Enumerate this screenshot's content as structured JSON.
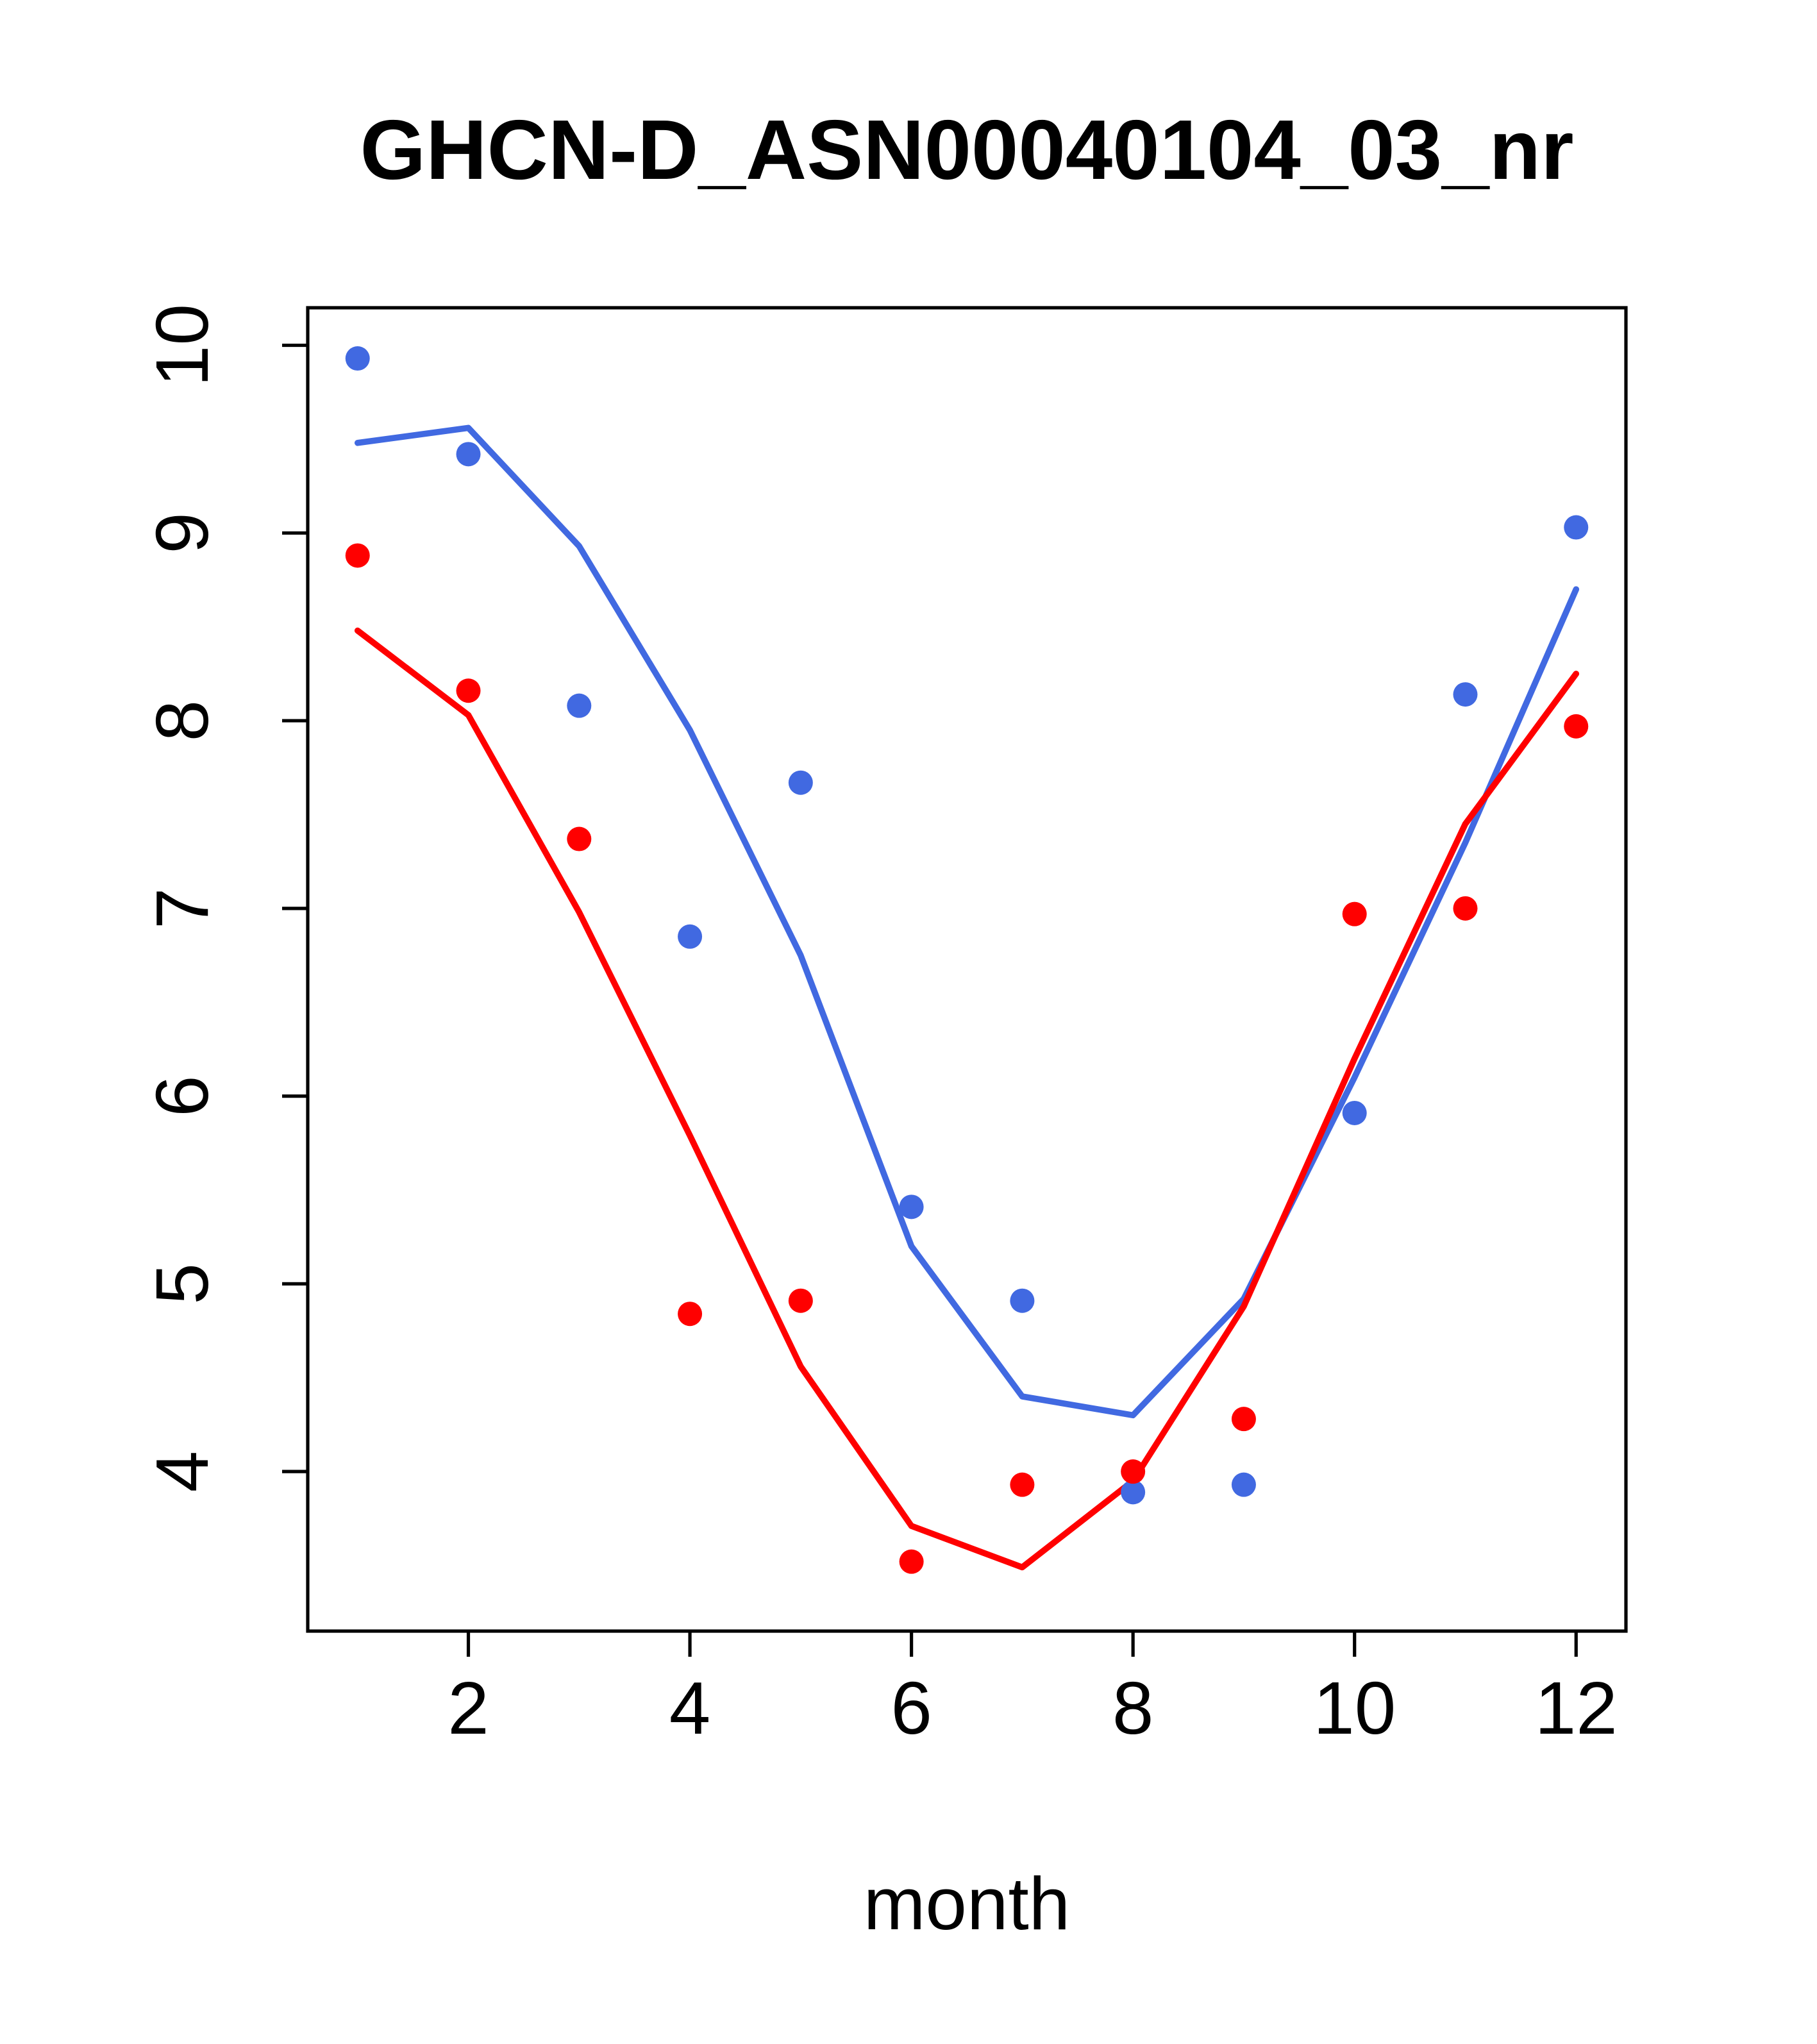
{
  "figure": {
    "background": "#ffffff"
  },
  "chart_data": {
    "type": "scatter",
    "title": "GHCN-D_ASN00040104_03_nr",
    "xlabel": "month",
    "ylabel": "",
    "xlim": [
      0.55,
      12.45
    ],
    "ylim": [
      3.15,
      10.2
    ],
    "x_ticks": [
      2,
      4,
      6,
      8,
      10,
      12
    ],
    "y_ticks": [
      4,
      5,
      6,
      7,
      8,
      9,
      10
    ],
    "grid": false,
    "legend": "none",
    "months": [
      1,
      2,
      3,
      4,
      5,
      6,
      7,
      8,
      9,
      10,
      11,
      12
    ],
    "colors": {
      "blue": "#4169E1",
      "red": "#FF0000"
    },
    "series": [
      {
        "name": "blue-observed-points",
        "type": "points",
        "color": "#4169E1",
        "values": [
          9.93,
          9.42,
          8.08,
          6.85,
          7.67,
          5.41,
          4.91,
          3.89,
          3.93,
          5.91,
          8.14,
          9.03
        ]
      },
      {
        "name": "blue-fitted-line",
        "type": "line",
        "color": "#4169E1",
        "values": [
          9.48,
          9.56,
          8.93,
          7.95,
          6.75,
          5.2,
          4.4,
          4.3,
          4.92,
          6.1,
          7.35,
          8.7
        ]
      },
      {
        "name": "red-observed-points",
        "type": "points",
        "color": "#FF0000",
        "values": [
          8.88,
          8.16,
          7.37,
          4.84,
          4.91,
          3.52,
          3.93,
          4.0,
          4.28,
          6.97,
          7.0,
          7.97
        ]
      },
      {
        "name": "red-fitted-line",
        "type": "line",
        "color": "#FF0000",
        "values": [
          8.48,
          8.03,
          6.98,
          5.79,
          4.56,
          3.71,
          3.49,
          3.95,
          4.88,
          6.2,
          7.45,
          8.25
        ]
      }
    ]
  }
}
